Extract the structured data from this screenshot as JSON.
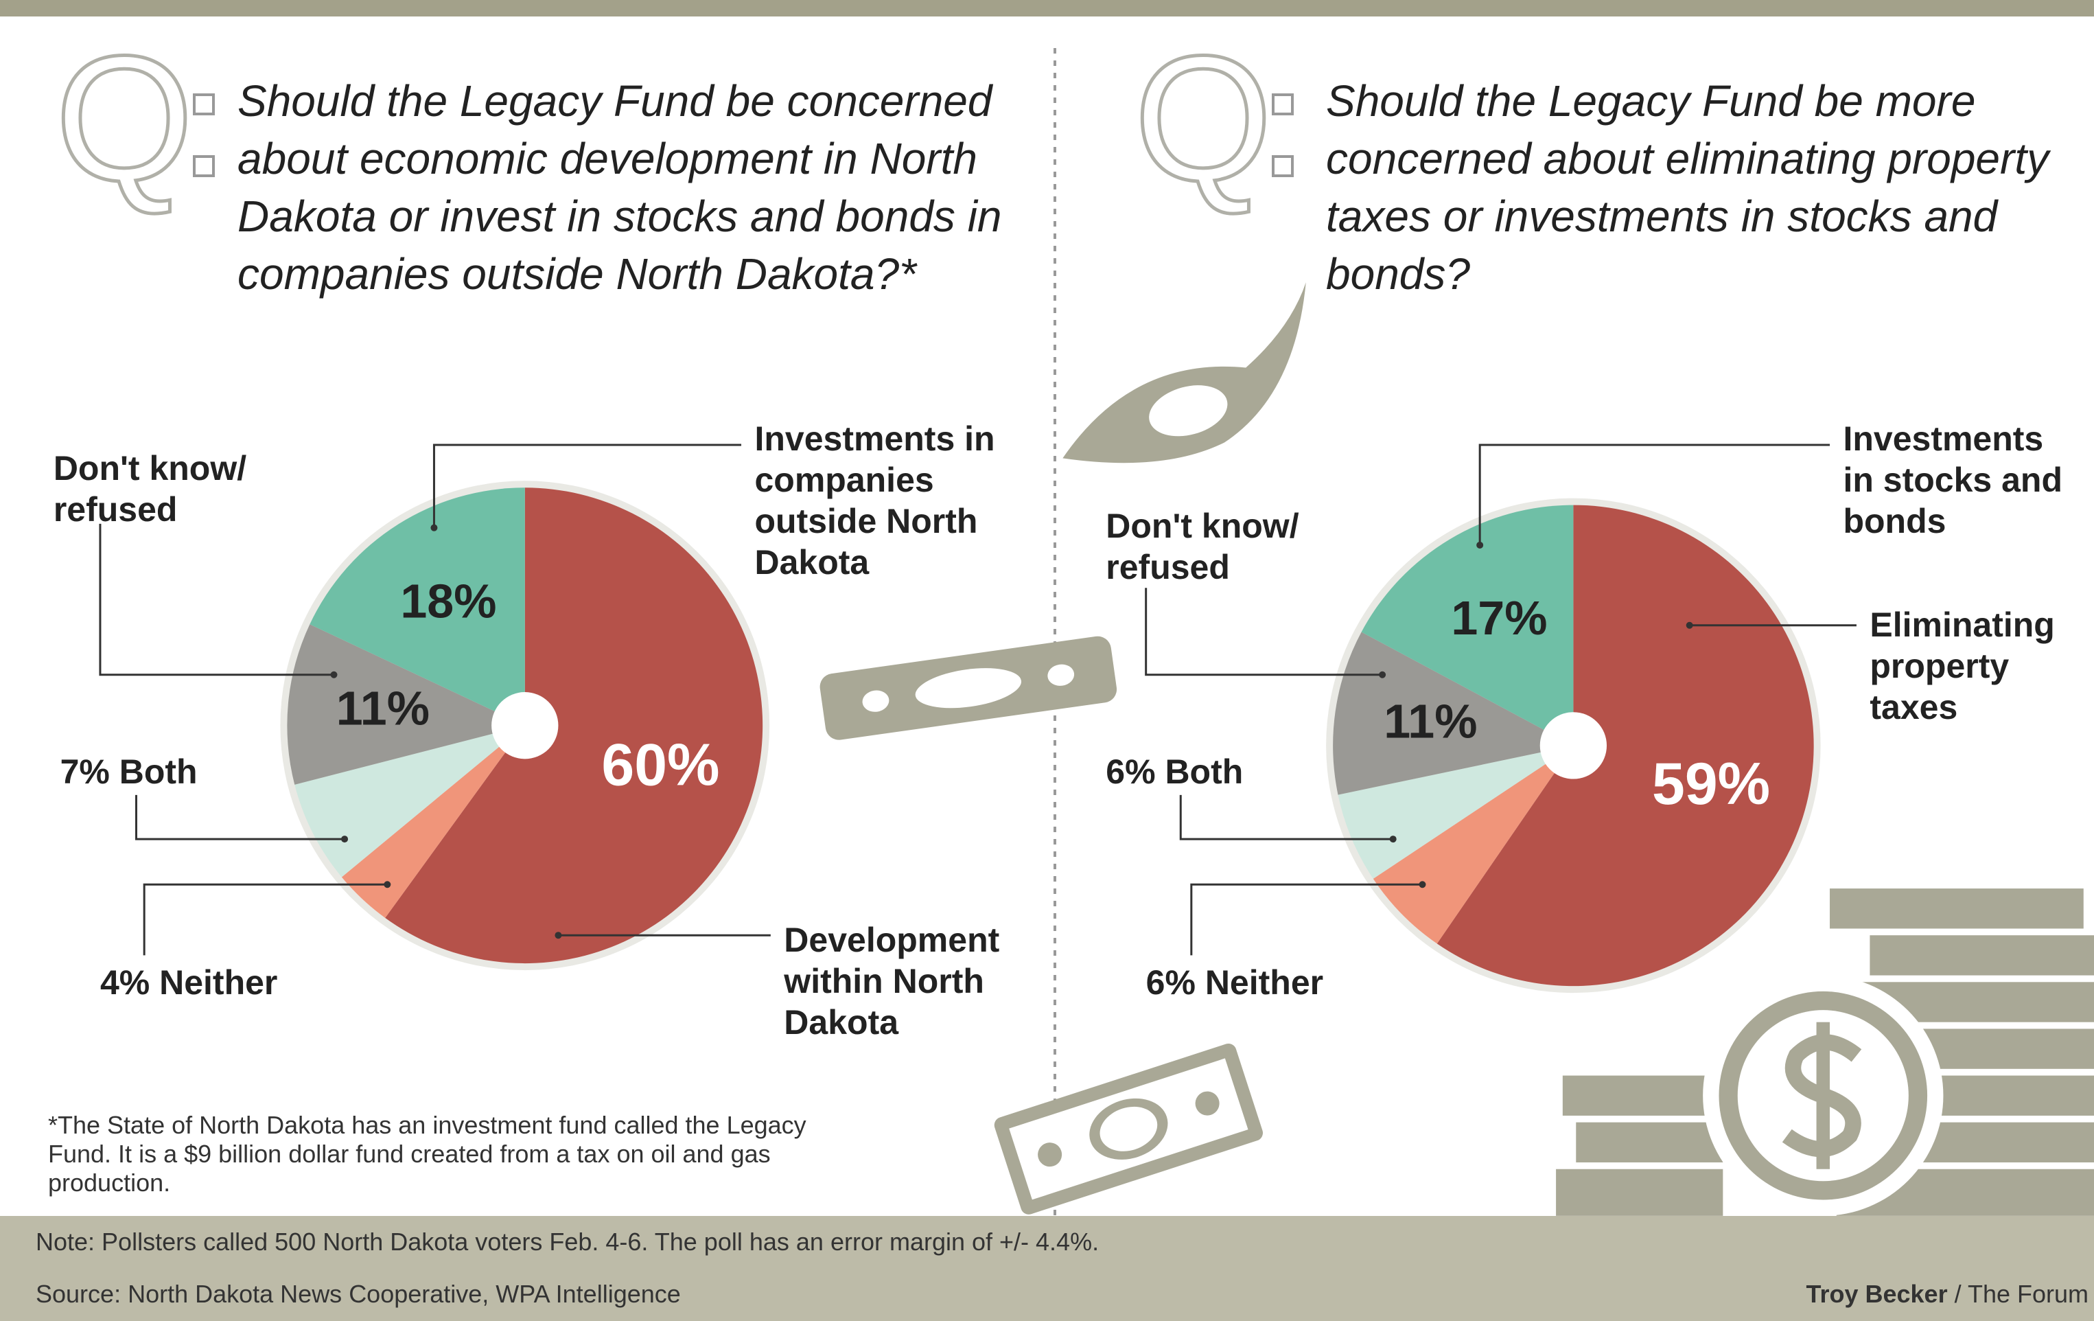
{
  "marker": "Q",
  "chart_data": [
    {
      "type": "pie",
      "title": "Should the Legacy Fund be concerned about economic development in North Dakota or invest in stocks and bonds in companies outside North Dakota?*",
      "categories": [
        "Development within North Dakota",
        "Neither",
        "Both",
        "Don't know/ refused",
        "Investments in companies outside North Dakota"
      ],
      "values": [
        60,
        4,
        7,
        11,
        18
      ],
      "value_labels": [
        "60%",
        "4%",
        "7%",
        "11%",
        "18%"
      ],
      "colors": [
        "#b5524a",
        "#f0957a",
        "#cfe8df",
        "#9a9995",
        "#6fbfa6"
      ]
    },
    {
      "type": "pie",
      "title": "Should the Legacy Fund be more concerned about eliminating property taxes or investments in stocks and bonds?",
      "categories": [
        "Eliminating property taxes",
        "Neither",
        "Both",
        "Don't know/ refused",
        "Investments in stocks and bonds"
      ],
      "values": [
        59,
        6,
        6,
        11,
        17
      ],
      "value_labels": [
        "59%",
        "6%",
        "6%",
        "11%",
        "17%"
      ],
      "colors": [
        "#b5524a",
        "#f0957a",
        "#cfe8df",
        "#9a9995",
        "#6fbfa6"
      ]
    }
  ],
  "footnote": "*The State of North Dakota has an investment fund called the Legacy Fund. It is a $9 billion dollar fund created from a tax on oil and gas production.",
  "note": "Note: Pollsters called 500 North Dakota voters Feb. 4-6. The poll has an error margin of +/- 4.4%.",
  "source": "Source: North Dakota News Cooperative, WPA Intelligence",
  "credit": {
    "author": "Troy Becker",
    "outlet": "/ The Forum"
  }
}
